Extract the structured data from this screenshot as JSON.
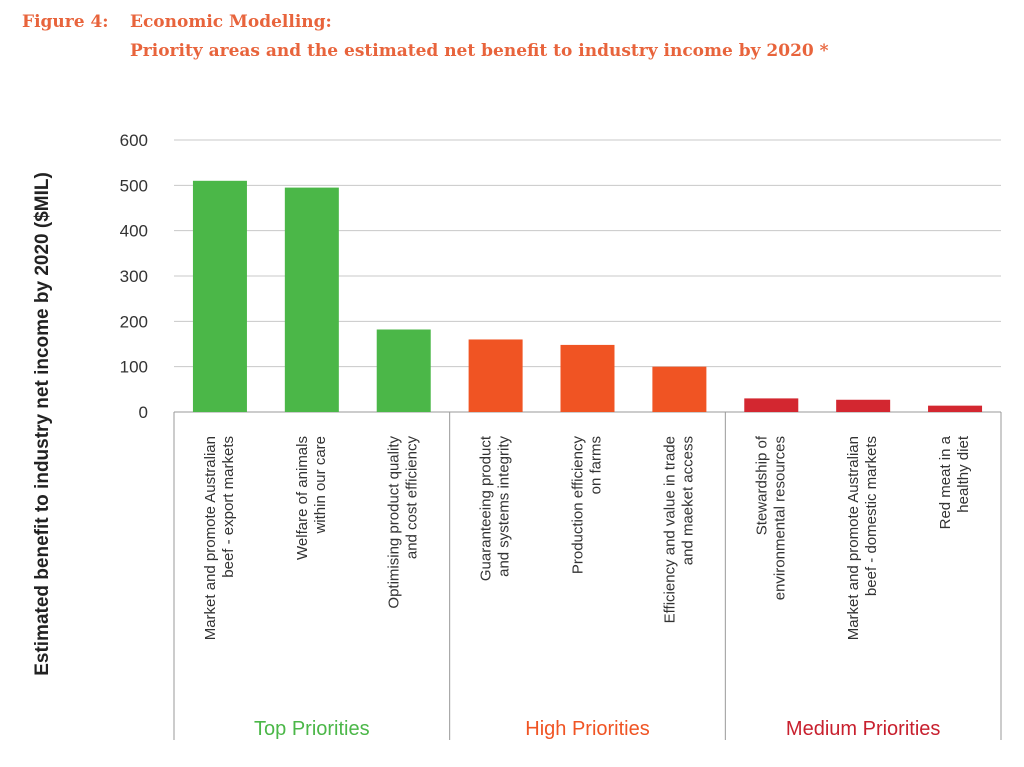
{
  "figure": {
    "number": "Figure 4:",
    "title_line1": "Economic Modelling:",
    "title_line2": "Priority areas and the estimated net benefit to industry income by 2020 *"
  },
  "chart_data": {
    "type": "bar",
    "ylabel": "Estimated benefit to industry net income by 2020 ($MIL)",
    "ylim": [
      0,
      600
    ],
    "yticks": [
      0,
      100,
      200,
      300,
      400,
      500,
      600
    ],
    "grid": true,
    "categories": [
      [
        "Market and promote Australian",
        "beef - export markets"
      ],
      [
        "Welfare of animals",
        "within our care"
      ],
      [
        "Optimising product quality",
        "and cost efficiency"
      ],
      [
        "Guaranteeing product",
        "and systems integrity"
      ],
      [
        "Production efficiency",
        "on farms"
      ],
      [
        "Efficiency and value in trade",
        "and maeket access"
      ],
      [
        "Stewardship of",
        "environmental resources"
      ],
      [
        "Market and promote Australian",
        "beef - domestic markets"
      ],
      [
        "Red meat in a",
        "healthy diet"
      ]
    ],
    "values": [
      510,
      495,
      182,
      160,
      148,
      100,
      30,
      27,
      14
    ],
    "bar_colors": [
      "#4bb748",
      "#4bb748",
      "#4bb748",
      "#f05423",
      "#f05423",
      "#f05423",
      "#d32730",
      "#d32730",
      "#d32730"
    ],
    "groups": [
      {
        "label": "Top Priorities",
        "color": "#4bb748",
        "start": 0,
        "end": 2
      },
      {
        "label": "High Priorities",
        "color": "#f05423",
        "start": 3,
        "end": 5
      },
      {
        "label": "Medium Priorities",
        "color": "#c8202e",
        "start": 6,
        "end": 8
      }
    ]
  }
}
